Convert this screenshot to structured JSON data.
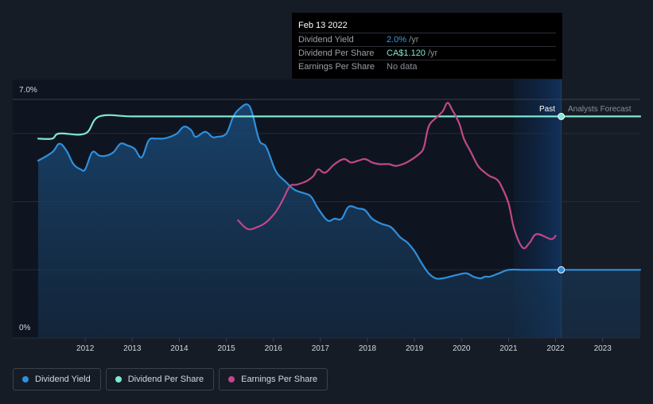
{
  "tooltip": {
    "date": "Feb 13 2022",
    "rows": [
      {
        "label": "Dividend Yield",
        "value": "2.0%",
        "suffix": " /yr"
      },
      {
        "label": "Dividend Per Share",
        "value": "CA$1.120",
        "suffix": " /yr"
      },
      {
        "label": "Earnings Per Share",
        "value": "No data",
        "suffix": ""
      }
    ]
  },
  "legend": [
    {
      "label": "Dividend Yield",
      "color": "#2f8fdc"
    },
    {
      "label": "Dividend Per Share",
      "color": "#7fe8d3"
    },
    {
      "label": "Earnings Per Share",
      "color": "#c0488a"
    }
  ],
  "chart_data": {
    "type": "line",
    "title": "",
    "xlabel": "",
    "ylabel": "",
    "ylim": [
      0,
      7.0
    ],
    "y_tick_labels": [
      "7.0%",
      "0%"
    ],
    "x_ticks": [
      2012,
      2013,
      2014,
      2015,
      2016,
      2017,
      2018,
      2019,
      2020,
      2021,
      2022,
      2023
    ],
    "xlim": [
      2011.0,
      2023.8
    ],
    "past_label": "Past",
    "forecast_label": "Analysts Forecast",
    "cursor_x": 2022.12,
    "highlight_band": [
      2021.12,
      2022.12
    ],
    "series": [
      {
        "name": "Dividend Yield",
        "color": "#2f8fdc",
        "fill": true,
        "points": [
          [
            2011.0,
            5.2
          ],
          [
            2011.3,
            5.45
          ],
          [
            2011.45,
            5.7
          ],
          [
            2011.6,
            5.5
          ],
          [
            2011.75,
            5.1
          ],
          [
            2011.9,
            4.95
          ],
          [
            2012.0,
            4.95
          ],
          [
            2012.15,
            5.45
          ],
          [
            2012.3,
            5.35
          ],
          [
            2012.45,
            5.35
          ],
          [
            2012.6,
            5.45
          ],
          [
            2012.75,
            5.7
          ],
          [
            2012.9,
            5.65
          ],
          [
            2013.05,
            5.55
          ],
          [
            2013.2,
            5.3
          ],
          [
            2013.35,
            5.8
          ],
          [
            2013.5,
            5.85
          ],
          [
            2013.65,
            5.85
          ],
          [
            2013.8,
            5.9
          ],
          [
            2013.95,
            6.0
          ],
          [
            2014.1,
            6.2
          ],
          [
            2014.25,
            6.1
          ],
          [
            2014.35,
            5.9
          ],
          [
            2014.55,
            6.05
          ],
          [
            2014.7,
            5.9
          ],
          [
            2014.8,
            5.9
          ],
          [
            2015.0,
            6.0
          ],
          [
            2015.15,
            6.5
          ],
          [
            2015.3,
            6.75
          ],
          [
            2015.45,
            6.85
          ],
          [
            2015.55,
            6.6
          ],
          [
            2015.7,
            5.8
          ],
          [
            2015.85,
            5.6
          ],
          [
            2016.05,
            4.9
          ],
          [
            2016.25,
            4.6
          ],
          [
            2016.45,
            4.35
          ],
          [
            2016.65,
            4.25
          ],
          [
            2016.8,
            4.15
          ],
          [
            2016.95,
            3.8
          ],
          [
            2017.15,
            3.45
          ],
          [
            2017.3,
            3.5
          ],
          [
            2017.45,
            3.5
          ],
          [
            2017.6,
            3.85
          ],
          [
            2017.8,
            3.8
          ],
          [
            2017.95,
            3.75
          ],
          [
            2018.1,
            3.5
          ],
          [
            2018.3,
            3.35
          ],
          [
            2018.5,
            3.25
          ],
          [
            2018.7,
            2.95
          ],
          [
            2018.85,
            2.8
          ],
          [
            2019.0,
            2.55
          ],
          [
            2019.15,
            2.2
          ],
          [
            2019.3,
            1.9
          ],
          [
            2019.45,
            1.75
          ],
          [
            2019.6,
            1.75
          ],
          [
            2019.75,
            1.8
          ],
          [
            2019.9,
            1.85
          ],
          [
            2020.1,
            1.9
          ],
          [
            2020.25,
            1.8
          ],
          [
            2020.4,
            1.75
          ],
          [
            2020.5,
            1.8
          ],
          [
            2020.6,
            1.8
          ],
          [
            2020.8,
            1.9
          ],
          [
            2021.0,
            2.0
          ],
          [
            2021.3,
            2.0
          ],
          [
            2021.5,
            2.0
          ],
          [
            2021.8,
            2.0
          ],
          [
            2022.0,
            2.0
          ],
          [
            2022.12,
            2.0
          ],
          [
            2023.8,
            2.0
          ]
        ]
      },
      {
        "name": "Dividend Per Share",
        "color": "#7fe8d3",
        "fill": false,
        "points": [
          [
            2011.0,
            5.85
          ],
          [
            2011.3,
            5.85
          ],
          [
            2011.45,
            6.0
          ],
          [
            2012.0,
            6.0
          ],
          [
            2012.3,
            6.5
          ],
          [
            2013.0,
            6.5
          ],
          [
            2014.0,
            6.5
          ],
          [
            2015.0,
            6.5
          ],
          [
            2016.0,
            6.5
          ],
          [
            2017.0,
            6.5
          ],
          [
            2018.0,
            6.5
          ],
          [
            2019.0,
            6.5
          ],
          [
            2020.0,
            6.5
          ],
          [
            2021.0,
            6.5
          ],
          [
            2022.12,
            6.5
          ],
          [
            2023.8,
            6.5
          ]
        ]
      },
      {
        "name": "Earnings Per Share",
        "color": "#c0488a",
        "fill": false,
        "points": [
          [
            2015.25,
            3.45
          ],
          [
            2015.45,
            3.2
          ],
          [
            2015.65,
            3.25
          ],
          [
            2015.85,
            3.4
          ],
          [
            2016.05,
            3.7
          ],
          [
            2016.2,
            4.05
          ],
          [
            2016.35,
            4.45
          ],
          [
            2016.5,
            4.5
          ],
          [
            2016.7,
            4.6
          ],
          [
            2016.85,
            4.75
          ],
          [
            2016.95,
            4.95
          ],
          [
            2017.1,
            4.85
          ],
          [
            2017.3,
            5.1
          ],
          [
            2017.5,
            5.25
          ],
          [
            2017.65,
            5.15
          ],
          [
            2017.8,
            5.2
          ],
          [
            2017.95,
            5.25
          ],
          [
            2018.1,
            5.15
          ],
          [
            2018.25,
            5.1
          ],
          [
            2018.45,
            5.1
          ],
          [
            2018.6,
            5.05
          ],
          [
            2018.75,
            5.1
          ],
          [
            2018.9,
            5.2
          ],
          [
            2019.1,
            5.4
          ],
          [
            2019.2,
            5.6
          ],
          [
            2019.3,
            6.2
          ],
          [
            2019.45,
            6.45
          ],
          [
            2019.6,
            6.65
          ],
          [
            2019.7,
            6.9
          ],
          [
            2019.8,
            6.7
          ],
          [
            2019.95,
            6.3
          ],
          [
            2020.05,
            5.85
          ],
          [
            2020.2,
            5.45
          ],
          [
            2020.35,
            5.05
          ],
          [
            2020.5,
            4.85
          ],
          [
            2020.6,
            4.75
          ],
          [
            2020.75,
            4.65
          ],
          [
            2020.85,
            4.45
          ],
          [
            2021.0,
            3.95
          ],
          [
            2021.12,
            3.2
          ],
          [
            2021.3,
            2.65
          ],
          [
            2021.45,
            2.8
          ],
          [
            2021.6,
            3.05
          ],
          [
            2021.9,
            2.9
          ],
          [
            2022.0,
            3.0
          ]
        ]
      }
    ]
  }
}
